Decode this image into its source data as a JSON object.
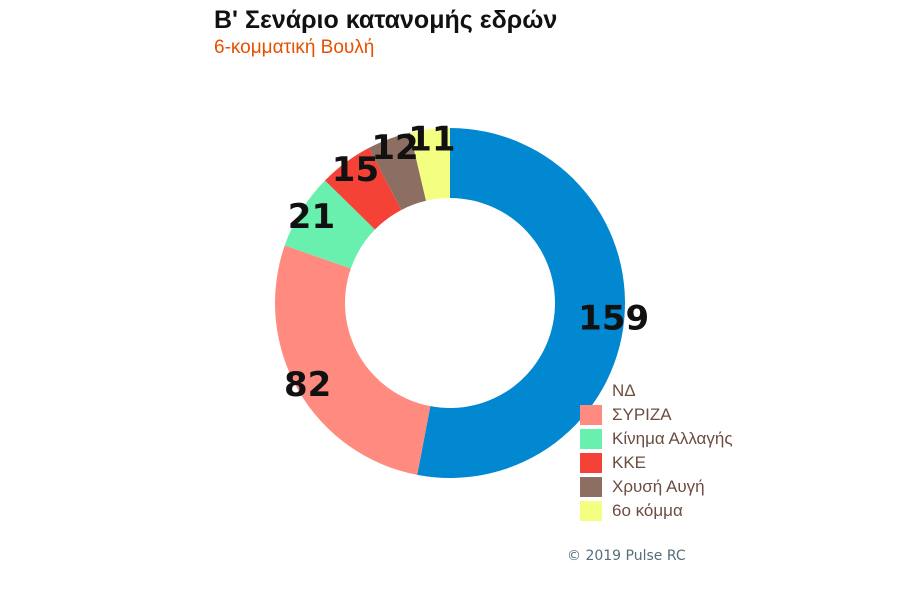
{
  "chart_data": {
    "type": "pie",
    "subtype": "donut",
    "title": "Β' Σενάριο κατανομής εδρών",
    "subtitle": "6-κομματική Βουλή",
    "categories": [
      "ΝΔ",
      "ΣΥΡΙΖΑ",
      "Κίνημα Αλλαγής",
      "ΚΚΕ",
      "Χρυσή Αυγή",
      "6ο κόμμα"
    ],
    "values": [
      159,
      82,
      21,
      15,
      12,
      11
    ],
    "value_labels": [
      "159",
      "82",
      "21",
      "15",
      "12",
      "11"
    ],
    "colors": [
      "#0288d1",
      "#ff8a80",
      "#69f0ae",
      "#f44336",
      "#8d6e63",
      "#f4ff81"
    ],
    "legend_position": "bottom-right"
  },
  "style": {
    "subtitle_color": "#e65100",
    "legend_text_color": "#6d4c41"
  },
  "footer": {
    "copyright": "© 2019 Pulse RC"
  }
}
